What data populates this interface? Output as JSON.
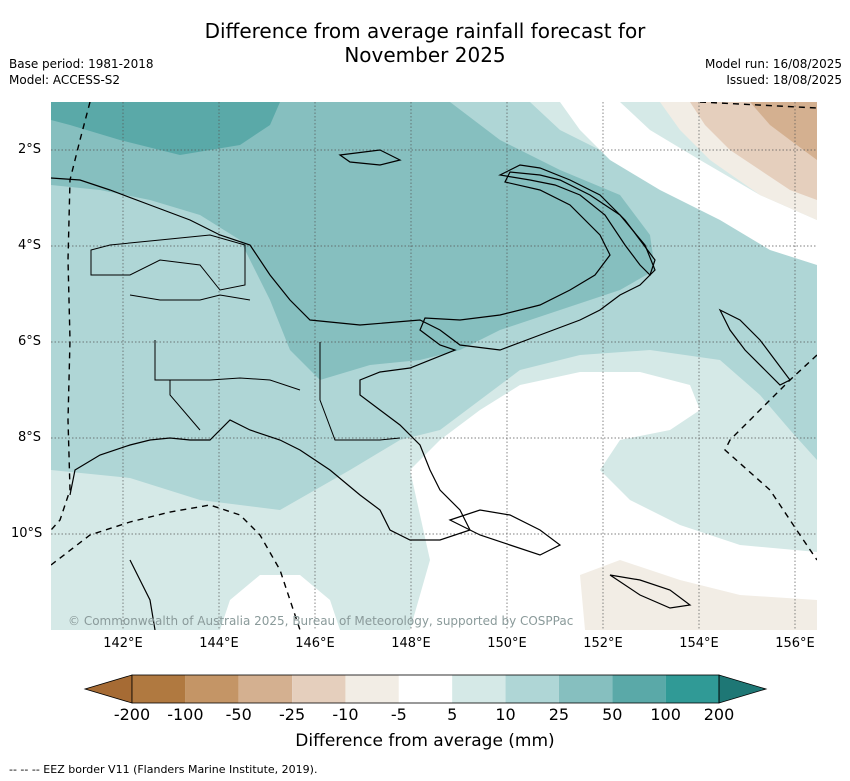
{
  "title_line1": "Difference from average rainfall forecast for",
  "title_line2": "November 2025",
  "meta_left": {
    "base_period": "Base period: 1981-2018",
    "model": "Model: ACCESS-S2"
  },
  "meta_right": {
    "model_run": "Model run: 16/08/2025",
    "issued": "Issued: 18/08/2025"
  },
  "copyright": "© Commonwealth of Australia 2025, Bureau of Meteorology, supported by COSPPac",
  "lat_labels": [
    "2°S",
    "4°S",
    "6°S",
    "8°S",
    "10°S"
  ],
  "lon_labels": [
    "142°E",
    "144°E",
    "146°E",
    "148°E",
    "150°E",
    "152°E",
    "154°E",
    "156°E"
  ],
  "colorbar": {
    "title": "Difference from average (mm)",
    "ticks": [
      "-200",
      "-100",
      "-50",
      "-25",
      "-10",
      "-5",
      "5",
      "10",
      "25",
      "50",
      "100",
      "200"
    ],
    "colors": [
      "#a66b34",
      "#b07940",
      "#c49566",
      "#d4b090",
      "#e5cfbd",
      "#f2ede5",
      "#ffffff",
      "#d5e9e7",
      "#afd6d6",
      "#86bfbf",
      "#5aa9a8",
      "#309a96",
      "#1e7775"
    ]
  },
  "legend": "--  --  -- EEZ border V11 (Flanders Marine Institute, 2019)."
}
